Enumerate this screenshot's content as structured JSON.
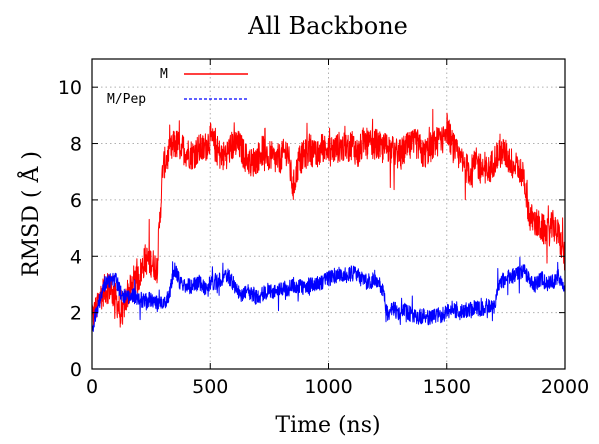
{
  "chart_data": {
    "type": "line",
    "title": "All Backbone",
    "xlabel": "Time (ns)",
    "ylabel": "RMSD ( Å )",
    "xlim": [
      0,
      2000
    ],
    "ylim": [
      0,
      11
    ],
    "xticks": [
      0,
      500,
      1000,
      1500,
      2000
    ],
    "yticks": [
      0,
      2,
      4,
      6,
      8,
      10
    ],
    "grid": true,
    "legend_position": "top-left",
    "series": [
      {
        "name": "M",
        "color": "#ff0000",
        "line_style": "solid",
        "x": [
          0,
          25,
          50,
          75,
          100,
          125,
          150,
          175,
          200,
          225,
          250,
          275,
          300,
          325,
          350,
          375,
          400,
          425,
          450,
          475,
          500,
          525,
          550,
          575,
          600,
          625,
          650,
          675,
          700,
          725,
          750,
          775,
          800,
          825,
          850,
          875,
          900,
          925,
          950,
          975,
          1000,
          1025,
          1050,
          1075,
          1100,
          1125,
          1150,
          1175,
          1200,
          1225,
          1250,
          1275,
          1300,
          1325,
          1350,
          1375,
          1400,
          1425,
          1450,
          1475,
          1500,
          1525,
          1550,
          1575,
          1600,
          1625,
          1650,
          1675,
          1700,
          1725,
          1750,
          1775,
          1800,
          1825,
          1850,
          1875,
          1900,
          1925,
          1950,
          1975,
          2000
        ],
        "y": [
          1.7,
          2.4,
          2.8,
          2.9,
          2.5,
          1.9,
          2.7,
          2.9,
          3.3,
          3.9,
          3.8,
          3.6,
          7.2,
          7.6,
          8.0,
          7.9,
          7.7,
          7.6,
          7.8,
          7.8,
          8.2,
          7.8,
          7.5,
          7.7,
          8.0,
          7.9,
          7.5,
          7.3,
          7.5,
          7.8,
          7.6,
          7.4,
          7.5,
          7.8,
          6.4,
          7.4,
          7.6,
          7.8,
          7.5,
          7.9,
          7.7,
          7.8,
          7.9,
          7.8,
          8.0,
          7.6,
          8.1,
          7.9,
          8.0,
          7.8,
          7.9,
          7.7,
          7.6,
          7.8,
          7.9,
          8.0,
          7.6,
          7.8,
          8.0,
          8.2,
          8.6,
          7.9,
          7.5,
          7.2,
          7.0,
          7.3,
          7.1,
          7.0,
          7.4,
          7.8,
          7.6,
          7.3,
          7.1,
          6.9,
          5.4,
          5.2,
          5.0,
          4.8,
          5.1,
          4.7,
          3.9
        ]
      },
      {
        "name": "M/Pep",
        "color": "#0000ff",
        "line_style": "dashed",
        "x": [
          0,
          25,
          50,
          75,
          100,
          125,
          150,
          175,
          200,
          225,
          250,
          275,
          300,
          325,
          350,
          375,
          400,
          425,
          450,
          475,
          500,
          525,
          550,
          575,
          600,
          625,
          650,
          675,
          700,
          725,
          750,
          775,
          800,
          825,
          850,
          875,
          900,
          925,
          950,
          975,
          1000,
          1025,
          1050,
          1075,
          1100,
          1125,
          1150,
          1175,
          1200,
          1225,
          1250,
          1275,
          1300,
          1325,
          1350,
          1375,
          1400,
          1425,
          1450,
          1475,
          1500,
          1525,
          1550,
          1575,
          1600,
          1625,
          1650,
          1675,
          1700,
          1725,
          1750,
          1775,
          1800,
          1825,
          1850,
          1875,
          1900,
          1925,
          1950,
          1975,
          2000
        ],
        "y": [
          1.4,
          2.2,
          3.0,
          3.1,
          3.2,
          2.6,
          2.5,
          2.6,
          2.5,
          2.4,
          2.5,
          2.3,
          2.4,
          2.5,
          3.6,
          3.0,
          3.0,
          2.9,
          3.1,
          2.9,
          3.0,
          3.1,
          3.2,
          3.3,
          3.0,
          2.6,
          2.8,
          2.7,
          2.5,
          2.7,
          2.8,
          2.7,
          2.9,
          2.8,
          3.0,
          2.9,
          2.9,
          3.0,
          3.0,
          3.1,
          3.2,
          3.3,
          3.4,
          3.3,
          3.4,
          3.3,
          3.1,
          3.1,
          3.2,
          2.9,
          2.0,
          2.1,
          2.0,
          2.1,
          1.9,
          1.8,
          1.9,
          1.8,
          1.9,
          1.9,
          2.0,
          2.2,
          2.0,
          2.1,
          2.1,
          2.2,
          2.1,
          2.3,
          2.2,
          3.1,
          3.2,
          3.3,
          3.4,
          3.5,
          3.1,
          3.0,
          3.2,
          3.0,
          3.1,
          3.3,
          2.7
        ]
      }
    ]
  }
}
